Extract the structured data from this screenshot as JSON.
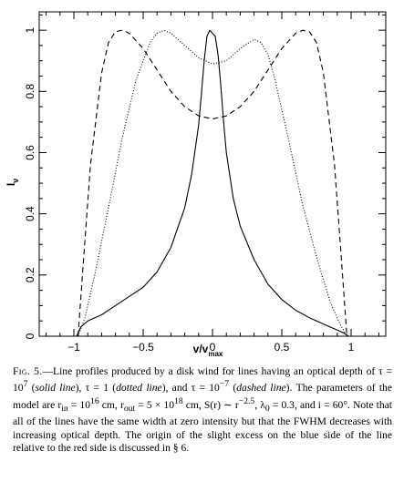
{
  "chart_data": {
    "type": "line",
    "xlabel": {
      "base": "v/v",
      "sub": "max"
    },
    "ylabel": {
      "base": "I",
      "sub": "ν"
    },
    "xlim": [
      -1.25,
      1.25
    ],
    "ylim": [
      0,
      1.06
    ],
    "x_ticks": [
      -1,
      -0.5,
      0,
      0.5,
      1
    ],
    "x_tick_labels": [
      "−1",
      "−0.5",
      "0",
      "0.5",
      "1"
    ],
    "y_ticks": [
      0,
      0.2,
      0.4,
      0.6,
      0.8,
      1
    ],
    "y_tick_labels": [
      "0",
      "0.2",
      "0.4",
      "0.6",
      "0.8",
      "1"
    ],
    "series": [
      {
        "style": "solid",
        "x": [
          -0.98,
          -0.95,
          -0.9,
          -0.8,
          -0.7,
          -0.6,
          -0.5,
          -0.4,
          -0.3,
          -0.2,
          -0.15,
          -0.1,
          -0.08,
          -0.06,
          -0.04,
          -0.02,
          0.0,
          0.02,
          0.04,
          0.06,
          0.08,
          0.1,
          0.15,
          0.2,
          0.3,
          0.4,
          0.5,
          0.6,
          0.7,
          0.8,
          0.9,
          0.95,
          0.98
        ],
        "y": [
          0.0,
          0.03,
          0.05,
          0.07,
          0.1,
          0.13,
          0.16,
          0.21,
          0.29,
          0.42,
          0.53,
          0.69,
          0.79,
          0.9,
          0.98,
          1.0,
          0.99,
          0.98,
          0.92,
          0.82,
          0.7,
          0.6,
          0.45,
          0.36,
          0.25,
          0.17,
          0.12,
          0.085,
          0.06,
          0.04,
          0.02,
          0.01,
          0.0
        ]
      },
      {
        "style": "dotted",
        "x": [
          -0.97,
          -0.92,
          -0.85,
          -0.75,
          -0.65,
          -0.55,
          -0.45,
          -0.4,
          -0.35,
          -0.3,
          -0.2,
          -0.1,
          0.0,
          0.1,
          0.2,
          0.3,
          0.35,
          0.4,
          0.45,
          0.55,
          0.65,
          0.75,
          0.85,
          0.92,
          0.97
        ],
        "y": [
          0.0,
          0.06,
          0.2,
          0.42,
          0.65,
          0.84,
          0.96,
          0.99,
          1.0,
          0.99,
          0.95,
          0.91,
          0.89,
          0.9,
          0.94,
          0.97,
          0.96,
          0.92,
          0.84,
          0.64,
          0.43,
          0.26,
          0.11,
          0.04,
          0.0
        ]
      },
      {
        "style": "dashed",
        "x": [
          -0.97,
          -0.93,
          -0.88,
          -0.8,
          -0.75,
          -0.7,
          -0.65,
          -0.6,
          -0.5,
          -0.4,
          -0.3,
          -0.2,
          -0.1,
          0.0,
          0.1,
          0.2,
          0.3,
          0.4,
          0.5,
          0.6,
          0.65,
          0.7,
          0.75,
          0.8,
          0.88,
          0.93,
          0.97
        ],
        "y": [
          0.0,
          0.25,
          0.56,
          0.86,
          0.96,
          0.995,
          1.0,
          0.99,
          0.94,
          0.87,
          0.8,
          0.75,
          0.72,
          0.71,
          0.72,
          0.75,
          0.8,
          0.87,
          0.94,
          0.99,
          1.0,
          0.995,
          0.96,
          0.86,
          0.56,
          0.25,
          0.0
        ]
      }
    ]
  },
  "caption": {
    "fig_label": "Fig. 5.",
    "part1": "—Line profiles produced by a disk wind for lines having an optical depth of τ = 10",
    "exp1": "7",
    "part2": " (",
    "style1": "solid line",
    "part3": "), τ = 1 (",
    "style2": "dotted line",
    "part4": "), and τ = 10",
    "exp2": "−7",
    "part5": " (",
    "style3": "dashed line",
    "part6": "). The parameters of the model are r",
    "sub_in": "in",
    "part7": " = 10",
    "exp3": "16",
    "part8": " cm, r",
    "sub_out": "out",
    "part9": " = 5 × 10",
    "exp4": "18",
    "part10": " cm, S(r) ∼ r",
    "exp5": "−2.5",
    "part11": ", λ",
    "sub_0": "0",
    "part12": " = 0.3, and i = 60°. Note that all of the lines have the same width at zero intensity but that the FWHM decreases with increasing optical depth. The origin of the slight excess on the blue side of the line relative to the red side is discussed in § 6."
  }
}
